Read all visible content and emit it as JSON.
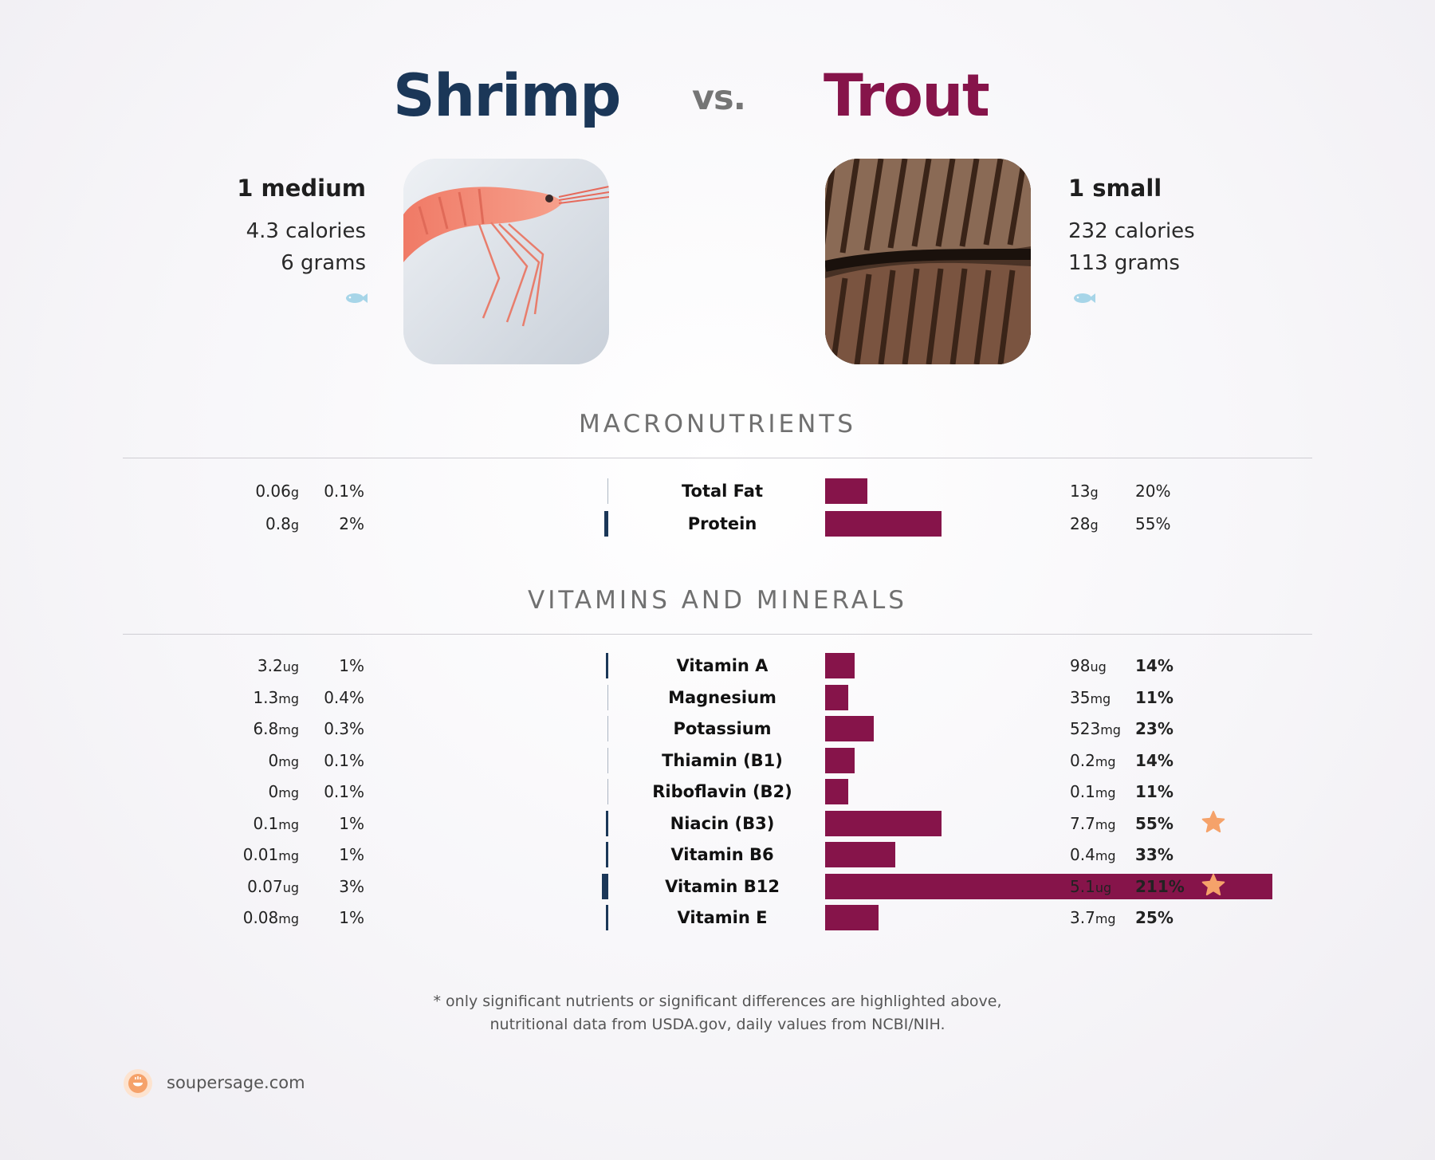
{
  "header": {
    "food_left": "Shrimp",
    "vs": "vs.",
    "food_right": "Trout"
  },
  "left": {
    "serving": "1 medium",
    "calories": "4.3 calories",
    "grams": "6 grams",
    "photo_icon": "shrimp-photo",
    "category_icon": "fish-icon"
  },
  "right": {
    "serving": "1 small",
    "calories": "232 calories",
    "grams": "113 grams",
    "photo_icon": "trout-photo",
    "category_icon": "fish-icon"
  },
  "sections": {
    "macros": "MACRONUTRIENTS",
    "vitamins": "VITAMINS AND MINERALS"
  },
  "footer": {
    "note_line1": "* only significant nutrients or significant differences are highlighted above,",
    "note_line2": "nutritional data from USDA.gov, daily values from NCBI/NIH.",
    "brand": "soupersage.com"
  },
  "colors": {
    "left": "#1b3758",
    "right": "#86144a",
    "star": "#f5a26a",
    "fish": "#a7d5e8"
  },
  "chart_data": [
    {
      "type": "bar",
      "title": "MACRONUTRIENTS",
      "categories": [
        "Total Fat",
        "Protein"
      ],
      "series": [
        {
          "name": "Shrimp",
          "amounts": [
            "0.06",
            "0.8"
          ],
          "units": [
            "g",
            "g"
          ],
          "pct_labels": [
            "0.1%",
            "2%"
          ],
          "values": [
            0.1,
            2
          ]
        },
        {
          "name": "Trout",
          "amounts": [
            "13",
            "28"
          ],
          "units": [
            "g",
            "g"
          ],
          "pct_labels": [
            "20%",
            "55%"
          ],
          "values": [
            20,
            55
          ],
          "bold": [
            false,
            false
          ]
        }
      ],
      "stars": [
        false,
        false
      ]
    },
    {
      "type": "bar",
      "title": "VITAMINS AND MINERALS",
      "categories": [
        "Vitamin A",
        "Magnesium",
        "Potassium",
        "Thiamin (B1)",
        "Riboflavin (B2)",
        "Niacin (B3)",
        "Vitamin B6",
        "Vitamin B12",
        "Vitamin E"
      ],
      "series": [
        {
          "name": "Shrimp",
          "amounts": [
            "3.2",
            "1.3",
            "6.8",
            "0",
            "0",
            "0.1",
            "0.01",
            "0.07",
            "0.08"
          ],
          "units": [
            "ug",
            "mg",
            "mg",
            "mg",
            "mg",
            "mg",
            "mg",
            "ug",
            "mg"
          ],
          "pct_labels": [
            "1%",
            "0.4%",
            "0.3%",
            "0.1%",
            "0.1%",
            "1%",
            "1%",
            "3%",
            "1%"
          ],
          "values": [
            1,
            0.4,
            0.3,
            0.1,
            0.1,
            1,
            1,
            3,
            1
          ]
        },
        {
          "name": "Trout",
          "amounts": [
            "98",
            "35",
            "523",
            "0.2",
            "0.1",
            "7.7",
            "0.4",
            "5.1",
            "3.7"
          ],
          "units": [
            "ug",
            "mg",
            "mg",
            "mg",
            "mg",
            "mg",
            "mg",
            "ug",
            "mg"
          ],
          "pct_labels": [
            "14%",
            "11%",
            "23%",
            "14%",
            "11%",
            "55%",
            "33%",
            "211%",
            "25%"
          ],
          "values": [
            14,
            11,
            23,
            14,
            11,
            55,
            33,
            211,
            25
          ],
          "bold": [
            true,
            true,
            true,
            true,
            true,
            true,
            true,
            true,
            true
          ]
        }
      ],
      "stars": [
        false,
        false,
        false,
        false,
        false,
        true,
        false,
        true,
        false
      ]
    }
  ]
}
